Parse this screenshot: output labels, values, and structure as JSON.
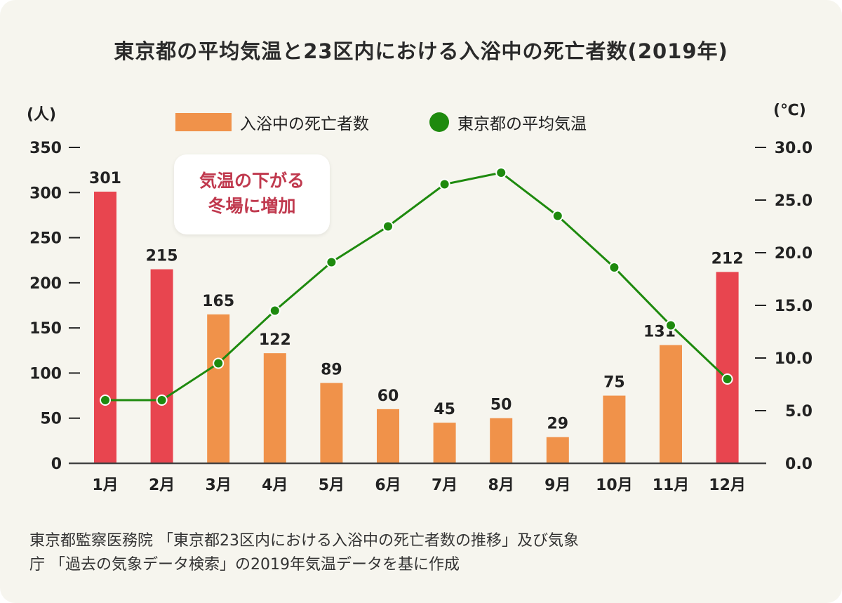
{
  "chart_data": {
    "type": "bar+line",
    "title": "東京都の平均気温と23区内における入浴中の死亡者数(2019年)",
    "categories": [
      "1月",
      "2月",
      "3月",
      "4月",
      "5月",
      "6月",
      "7月",
      "8月",
      "9月",
      "10月",
      "11月",
      "12月"
    ],
    "series": [
      {
        "name": "入浴中の死亡者数",
        "type": "bar",
        "axis": "left",
        "values": [
          301,
          215,
          165,
          122,
          89,
          60,
          45,
          50,
          29,
          75,
          131,
          212
        ]
      },
      {
        "name": "東京都の平均気温",
        "type": "line",
        "axis": "right",
        "values": [
          6.0,
          6.0,
          9.5,
          14.5,
          19.1,
          22.5,
          26.5,
          27.6,
          23.5,
          18.6,
          13.1,
          8.0
        ]
      }
    ],
    "highlight_months": [
      "1月",
      "2月",
      "12月"
    ],
    "left_axis": {
      "label": "(人)",
      "ylim": [
        0,
        350
      ],
      "ticks": [
        "0",
        "50",
        "100",
        "150",
        "200",
        "250",
        "300",
        "350"
      ]
    },
    "right_axis": {
      "label": "(℃)",
      "ylim": [
        0,
        30
      ],
      "ticks": [
        "0.0",
        "5.0",
        "10.0",
        "15.0",
        "20.0",
        "25.0",
        "30.0"
      ]
    },
    "legend_placement": "top-center",
    "annotation": [
      "気温の下がる",
      "冬場に増加"
    ],
    "colors": {
      "bar": "#f0924a",
      "bar_highlight": "#e8454f",
      "line": "#1e8a0e"
    }
  },
  "source": [
    "東京都監察医務院 「東京都23区内における入浴中の死亡者数の推移」及び気象",
    "庁 「過去の気象データ検索」の2019年気温データを基に作成"
  ]
}
